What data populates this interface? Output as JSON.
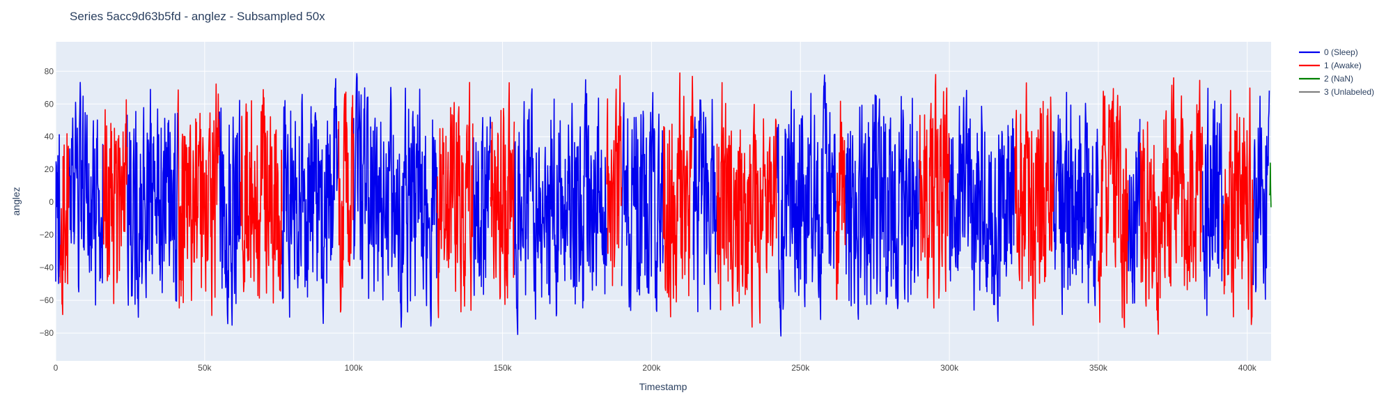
{
  "chart_data": {
    "type": "line",
    "title": "Series 5acc9d63b5fd - anglez - Subsampled 50x",
    "xlabel": "Timestamp",
    "ylabel": "anglez",
    "xlim": [
      0,
      408000
    ],
    "ylim": [
      -97,
      98
    ],
    "x_ticks": [
      0,
      50000,
      100000,
      150000,
      200000,
      250000,
      300000,
      350000,
      400000
    ],
    "x_tick_labels": [
      "0",
      "50k",
      "100k",
      "150k",
      "200k",
      "250k",
      "300k",
      "350k",
      "400k"
    ],
    "y_ticks": [
      -80,
      -60,
      -40,
      -20,
      0,
      20,
      40,
      60,
      80
    ],
    "y_tick_labels": [
      "−80",
      "−60",
      "−40",
      "−20",
      "0",
      "20",
      "40",
      "60",
      "80"
    ],
    "grid": true,
    "legend_position": "top-right",
    "background": "#e5ecf6",
    "series": [
      {
        "name": "0 (Sleep)",
        "color": "#0000ee",
        "value_range": [
          -86,
          86
        ],
        "segments": [
          [
            0,
            1500
          ],
          [
            4500,
            16000
          ],
          [
            24000,
            41000
          ],
          [
            55000,
            62000
          ],
          [
            76000,
            95000
          ],
          [
            100000,
            128000
          ],
          [
            140000,
            146000
          ],
          [
            154000,
            185000
          ],
          [
            190000,
            204000
          ],
          [
            214000,
            222000
          ],
          [
            242000,
            262000
          ],
          [
            265000,
            290000
          ],
          [
            300000,
            322000
          ],
          [
            335000,
            350000
          ],
          [
            360000,
            364000
          ],
          [
            385000,
            392000
          ],
          [
            402000,
            407500
          ]
        ]
      },
      {
        "name": "1 (Awake)",
        "color": "#ff0000",
        "value_range": [
          -88,
          89
        ],
        "segments": [
          [
            1500,
            4500
          ],
          [
            16000,
            24000
          ],
          [
            41000,
            55000
          ],
          [
            62000,
            76000
          ],
          [
            95000,
            100000
          ],
          [
            128000,
            140000
          ],
          [
            146000,
            154000
          ],
          [
            185000,
            190000
          ],
          [
            204000,
            214000
          ],
          [
            222000,
            242000
          ],
          [
            262000,
            265000
          ],
          [
            290000,
            300000
          ],
          [
            322000,
            335000
          ],
          [
            350000,
            360000
          ],
          [
            364000,
            385000
          ],
          [
            392000,
            402000
          ]
        ]
      },
      {
        "name": "2 (NaN)",
        "color": "#008000",
        "segments": [
          [
            407500,
            408000
          ]
        ]
      },
      {
        "name": "3 (Unlabeled)",
        "color": "#808080",
        "segments": []
      }
    ]
  }
}
